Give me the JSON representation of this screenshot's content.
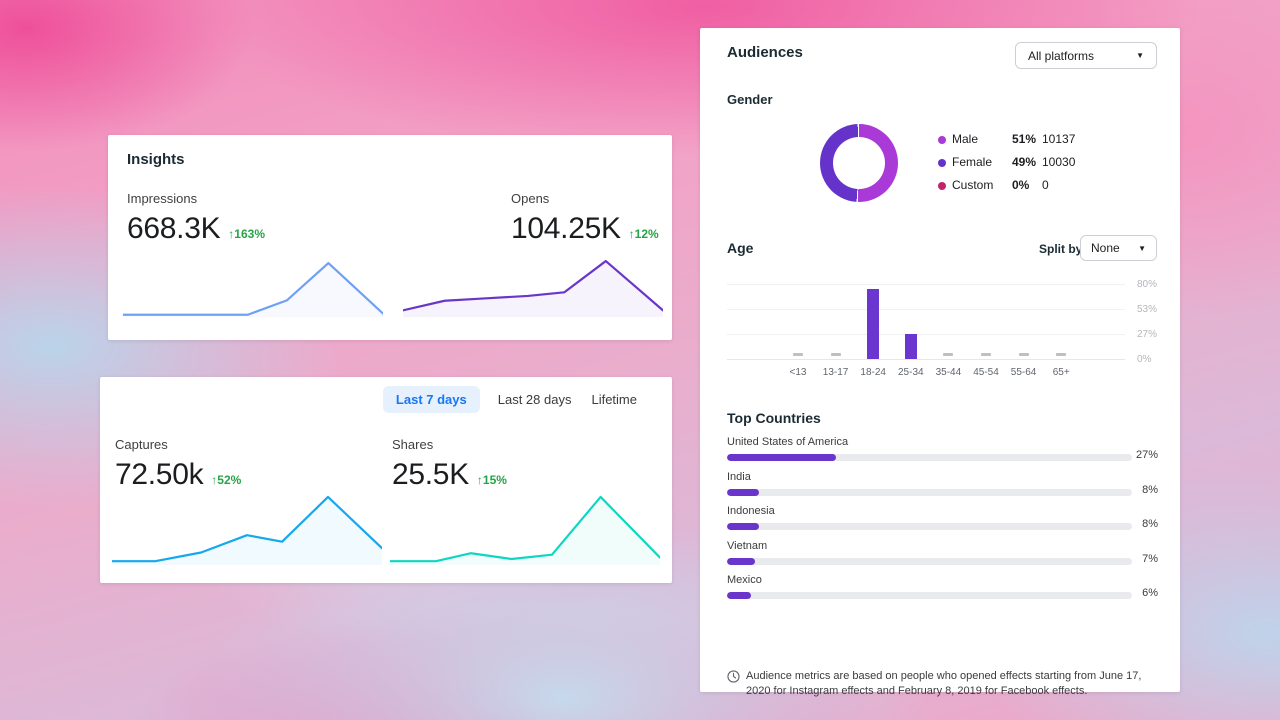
{
  "ui": {
    "caret": "▼"
  },
  "insights_card": {
    "title": "Insights",
    "metrics": [
      {
        "label": "Impressions",
        "value": "668.3K",
        "arrow": "↑",
        "delta": "163%"
      },
      {
        "label": "Opens",
        "value": "104.25K",
        "arrow": "↑",
        "delta": "12%"
      }
    ]
  },
  "period_card": {
    "tabs": [
      {
        "label": "Last 7 days",
        "active": true
      },
      {
        "label": "Last 28 days",
        "active": false
      },
      {
        "label": "Lifetime",
        "active": false
      }
    ],
    "metrics": [
      {
        "label": "Captures",
        "value": "72.50k",
        "arrow": "↑",
        "delta": "52%"
      },
      {
        "label": "Shares",
        "value": "25.5K",
        "arrow": "↑",
        "delta": "15%"
      }
    ]
  },
  "audiences_card": {
    "title": "Audiences",
    "platform_dropdown": {
      "value": "All platforms"
    },
    "gender": {
      "heading": "Gender",
      "legend": [
        {
          "label": "Male",
          "percent": "51%",
          "count": "10137",
          "color": "#a93ad7"
        },
        {
          "label": "Female",
          "percent": "49%",
          "count": "10030",
          "color": "#6533c9"
        },
        {
          "label": "Custom",
          "percent": "0%",
          "count": "0",
          "color": "#c0256b"
        }
      ]
    },
    "age": {
      "heading": "Age",
      "split_by_label": "Split by",
      "split_dropdown": {
        "value": "None"
      }
    },
    "top_countries": {
      "heading": "Top Countries"
    },
    "disclaimer": "Audience metrics are based on people who opened effects starting from June 17, 2020 for Instagram effects and February 8, 2019 for Facebook effects."
  },
  "colors": {
    "impressions_line": "#6fa0f4",
    "opens_line": "#6936c8",
    "captures_line": "#16a8ec",
    "shares_line": "#0fd6c3",
    "delta_green": "#27a348",
    "age_bar": "#6b35d0",
    "country_bar": "#6b35cc"
  },
  "chart_data": [
    {
      "type": "line",
      "name": "impressions-sparkline",
      "metric": "Impressions",
      "x": [
        0,
        48,
        63,
        79,
        100
      ],
      "values": [
        3,
        3,
        28,
        93,
        5
      ]
    },
    {
      "type": "line",
      "name": "opens-sparkline",
      "metric": "Opens",
      "x": [
        0,
        16,
        32,
        48,
        62,
        78,
        100
      ],
      "values": [
        10,
        26,
        30,
        34,
        40,
        92,
        10
      ]
    },
    {
      "type": "line",
      "name": "captures-sparkline",
      "metric": "Captures",
      "x": [
        0,
        16,
        33,
        50,
        63,
        80,
        100
      ],
      "values": [
        4,
        4,
        16,
        40,
        31,
        93,
        22
      ]
    },
    {
      "type": "line",
      "name": "shares-sparkline",
      "metric": "Shares",
      "x": [
        0,
        17,
        30,
        45,
        60,
        78,
        100
      ],
      "values": [
        4,
        4,
        15,
        7,
        13,
        93,
        9
      ]
    },
    {
      "type": "pie",
      "name": "gender-donut",
      "labels": [
        "Male",
        "Female",
        "Custom"
      ],
      "values": [
        51,
        49,
        0
      ],
      "counts": [
        10137,
        10030,
        0
      ],
      "colors": [
        "#a93ad7",
        "#6533c9",
        "#c0256b"
      ]
    },
    {
      "type": "bar",
      "name": "age-distribution",
      "categories": [
        "<13",
        "13-17",
        "18-24",
        "25-34",
        "35-44",
        "45-54",
        "55-64",
        "65+"
      ],
      "values": [
        0,
        0,
        74,
        27,
        0,
        0,
        0,
        0
      ],
      "ytick_labels": [
        "80%",
        "53%",
        "27%",
        "0%"
      ],
      "ytick_values": [
        80,
        53,
        27,
        0
      ],
      "ymax": 88
    },
    {
      "type": "bar",
      "name": "top-countries",
      "categories": [
        "United States of America",
        "India",
        "Indonesia",
        "Vietnam",
        "Mexico"
      ],
      "values": [
        27,
        8,
        8,
        7,
        6
      ],
      "labels_pct": [
        "27%",
        "8%",
        "8%",
        "7%",
        "6%"
      ]
    }
  ]
}
